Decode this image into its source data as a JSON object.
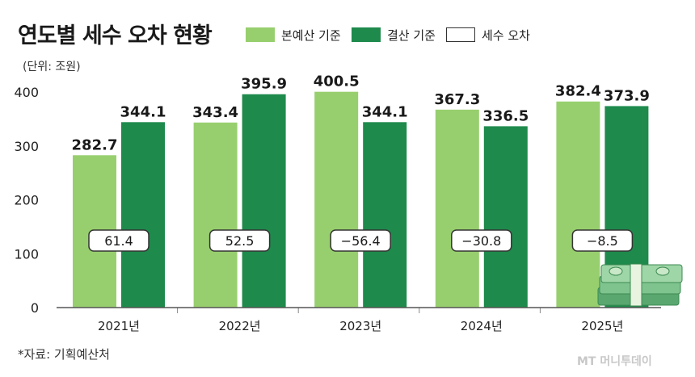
{
  "header": {
    "title": "연도별 세수 오차 현황",
    "unit": "(단위: 조원)"
  },
  "legend": [
    {
      "label": "본예산 기준",
      "color": "#97cf6e",
      "border": "#97cf6e"
    },
    {
      "label": "결산 기준",
      "color": "#1e8a4c",
      "border": "#1e8a4c"
    },
    {
      "label": "세수 오차",
      "color": "#ffffff",
      "border": "#333333"
    }
  ],
  "chart_data": {
    "type": "bar",
    "title": "연도별 세수 오차 현황",
    "ylabel": "(단위: 조원)",
    "xlabel": "",
    "categories": [
      "2021년",
      "2022년",
      "2023년",
      "2024년",
      "2025년"
    ],
    "series": [
      {
        "name": "본예산 기준",
        "color": "#97cf6e",
        "values": [
          282.7,
          343.4,
          400.5,
          367.3,
          382.4
        ],
        "labels": [
          "282.7",
          "343.4",
          "400.5",
          "367.3",
          "382.4"
        ]
      },
      {
        "name": "결산 기준",
        "color": "#1e8a4c",
        "values": [
          344.1,
          395.9,
          344.1,
          336.5,
          373.9
        ],
        "labels": [
          "344.1",
          "395.9",
          "344.1",
          "336.5",
          "373.9"
        ]
      }
    ],
    "errors": {
      "name": "세수 오차",
      "values": [
        61.4,
        52.5,
        -56.4,
        -30.8,
        -8.5
      ],
      "labels": [
        "61.4",
        "52.5",
        "−56.4",
        "−30.8",
        "−8.5"
      ]
    },
    "yticks": [
      0,
      100,
      200,
      300,
      400
    ],
    "ylim": [
      0,
      400
    ],
    "grid": false,
    "legend_position": "top"
  },
  "footer": {
    "source": "*자료: 기획예산처",
    "watermark": "MT 머니투데이"
  },
  "decoration": {
    "money_icon": "money-stack-icon"
  }
}
